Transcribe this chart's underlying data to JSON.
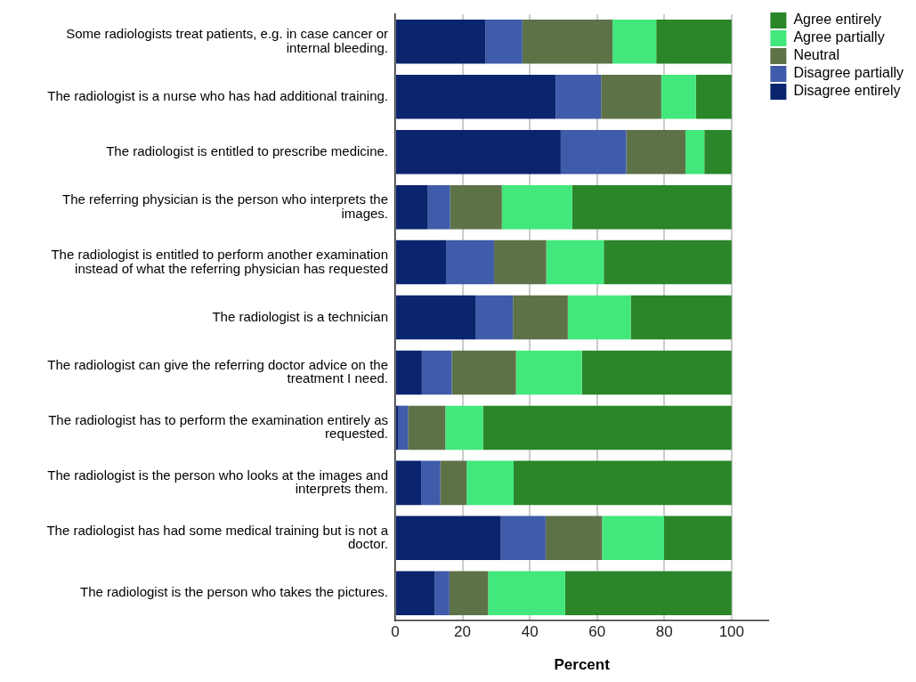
{
  "chart_data": {
    "type": "bar",
    "orientation": "horizontal",
    "stacked": true,
    "xlabel": "Percent",
    "categories": [
      "Some radiologists treat patients, e.g. in case cancer or internal bleeding.",
      "The radiologist is a nurse who has had additional training.",
      "The radiologist is entitled to prescribe medicine.",
      "The referring physician is the person who interprets the images.",
      "The radiologist is entitled to perform another examination instead of what the referring physician has requested",
      "The radiologist is a technician",
      "The radiologist can give the referring doctor advice on the treatment I need.",
      "The radiologist has to perform the examination entirely as requested.",
      "The radiologist is the person who looks at the images and interprets them.",
      "The radiologist has had some medical training but is not a doctor.",
      "The radiologist is the person who takes the pictures."
    ],
    "series": [
      {
        "name": "Disagree entirely",
        "color": "#0a246e",
        "values": [
          26.8,
          47.7,
          49.2,
          9.7,
          15.1,
          24.0,
          7.9,
          0.8,
          7.7,
          31.4,
          11.8
        ]
      },
      {
        "name": "Disagree partially",
        "color": "#3f5ba9",
        "values": [
          11.0,
          13.5,
          19.5,
          6.6,
          14.3,
          11.0,
          8.9,
          3.0,
          5.7,
          13.3,
          4.3
        ]
      },
      {
        "name": "Neutral",
        "color": "#5e7248",
        "values": [
          26.8,
          17.9,
          17.6,
          15.4,
          15.5,
          16.3,
          19.1,
          11.1,
          7.8,
          16.8,
          11.5
        ]
      },
      {
        "name": "Agree partially",
        "color": "#42e87c",
        "values": [
          13.0,
          10.3,
          5.6,
          20.9,
          17.1,
          18.7,
          19.6,
          11.2,
          14.0,
          18.4,
          22.9
        ]
      },
      {
        "name": "Agree entirely",
        "color": "#2a8629",
        "values": [
          22.4,
          10.6,
          8.1,
          47.4,
          38.0,
          30.0,
          44.5,
          73.9,
          64.8,
          20.1,
          49.5
        ]
      }
    ],
    "xlim": [
      0,
      111
    ],
    "xticks": [
      0,
      20,
      40,
      60,
      80,
      100
    ],
    "grid": "x",
    "legend": "top right"
  }
}
